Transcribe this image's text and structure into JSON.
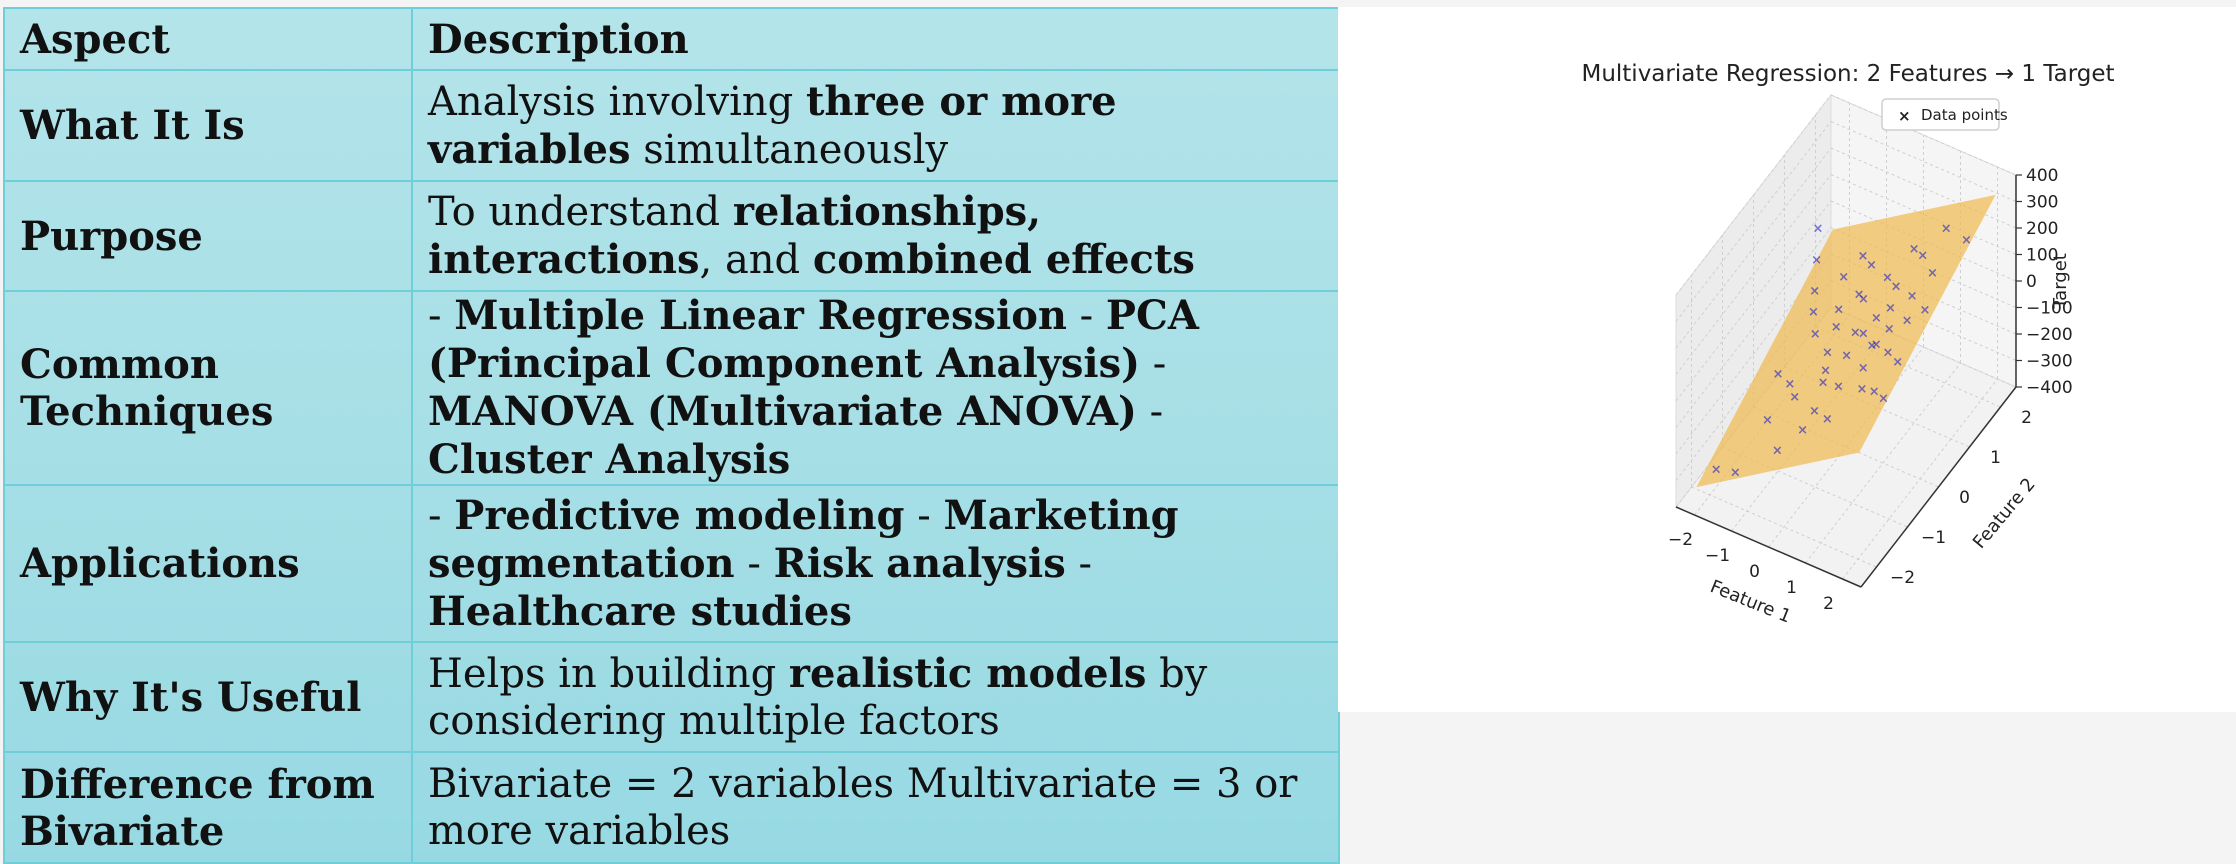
{
  "table": {
    "headers": [
      "Aspect",
      "Description"
    ],
    "rows": [
      {
        "aspect": "What It Is",
        "description": [
          {
            "text": "Analysis involving ",
            "bold": false
          },
          {
            "text": "three or more variables",
            "bold": true
          },
          {
            "text": " simultaneously",
            "bold": false
          }
        ]
      },
      {
        "aspect": "Purpose",
        "description": [
          {
            "text": "To understand ",
            "bold": false
          },
          {
            "text": "relationships, interactions",
            "bold": true
          },
          {
            "text": ", and ",
            "bold": false
          },
          {
            "text": "combined effects",
            "bold": true
          }
        ]
      },
      {
        "aspect": "Common Techniques",
        "description": [
          {
            "text": "- ",
            "bold": false
          },
          {
            "text": "Multiple Linear Regression",
            "bold": true
          },
          {
            "text": " - ",
            "bold": false
          },
          {
            "text": "PCA (Principal Component Analysis)",
            "bold": true
          },
          {
            "text": " - ",
            "bold": false
          },
          {
            "text": "MANOVA (Multivariate ANOVA)",
            "bold": true
          },
          {
            "text": " - ",
            "bold": false
          },
          {
            "text": "Cluster Analysis",
            "bold": true
          }
        ]
      },
      {
        "aspect": "Applications",
        "description": [
          {
            "text": "- ",
            "bold": false
          },
          {
            "text": "Predictive modeling",
            "bold": true
          },
          {
            "text": " - ",
            "bold": false
          },
          {
            "text": "Marketing segmentation",
            "bold": true
          },
          {
            "text": " - ",
            "bold": false
          },
          {
            "text": "Risk analysis",
            "bold": true
          },
          {
            "text": " - ",
            "bold": false
          },
          {
            "text": "Healthcare studies",
            "bold": true
          }
        ]
      },
      {
        "aspect": "Why It's Useful",
        "description": [
          {
            "text": "Helps in building ",
            "bold": false
          },
          {
            "text": "realistic models",
            "bold": true
          },
          {
            "text": " by considering multiple factors",
            "bold": false
          }
        ]
      },
      {
        "aspect": "Difference from Bivariate",
        "description": [
          {
            "text": "Bivariate = 2 variables Multivariate = 3 or more variables",
            "bold": false
          }
        ]
      }
    ]
  },
  "chart_data": {
    "type": "scatter",
    "title": "Multivariate Regression: 2 Features → 1 Target",
    "xlabel": "Feature 1",
    "ylabel": "Feature 2",
    "zlabel": "Target",
    "x_ticks": [
      "−2",
      "−1",
      "0",
      "1",
      "2"
    ],
    "y_ticks": [
      "−2",
      "−1",
      "0",
      "1",
      "2"
    ],
    "z_ticks": [
      "400",
      "300",
      "200",
      "100",
      "0",
      "−100",
      "−200",
      "−300",
      "−400"
    ],
    "xlim": [
      -2.5,
      2.5
    ],
    "ylim": [
      -2.5,
      2.5
    ],
    "zlim": [
      -400,
      400
    ],
    "grid": true,
    "legend_position": "top-right",
    "series": [
      {
        "name": "Data points",
        "marker": "x",
        "color": "#1f1fcc",
        "points": [
          [
            -2.1,
            1.6,
            60
          ],
          [
            -1.8,
            1.2,
            20
          ],
          [
            -1.5,
            -0.4,
            -150
          ],
          [
            -1.3,
            0.5,
            -40
          ],
          [
            -1.2,
            -1.1,
            -200
          ],
          [
            -1.0,
            0.2,
            -60
          ],
          [
            -0.9,
            1.0,
            40
          ],
          [
            -0.8,
            -0.7,
            -150
          ],
          [
            -0.7,
            0.6,
            -10
          ],
          [
            -0.6,
            -1.5,
            -220
          ],
          [
            -0.5,
            0.0,
            -70
          ],
          [
            -0.4,
            1.3,
            70
          ],
          [
            -0.3,
            -0.3,
            -80
          ],
          [
            -0.2,
            0.8,
            30
          ],
          [
            -0.1,
            -0.9,
            -130
          ],
          [
            0.0,
            0.3,
            -10
          ],
          [
            0.1,
            -0.1,
            -30
          ],
          [
            0.2,
            1.1,
            90
          ],
          [
            0.3,
            -0.6,
            -60
          ],
          [
            0.4,
            0.5,
            40
          ],
          [
            0.5,
            -1.2,
            -80
          ],
          [
            0.6,
            0.9,
            110
          ],
          [
            0.7,
            0.0,
            30
          ],
          [
            0.8,
            -0.4,
            10
          ],
          [
            0.9,
            1.4,
            170
          ],
          [
            1.0,
            0.2,
            80
          ],
          [
            1.1,
            -0.8,
            10
          ],
          [
            1.2,
            0.7,
            140
          ],
          [
            1.3,
            -0.2,
            70
          ],
          [
            1.5,
            1.0,
            200
          ],
          [
            1.6,
            -1.0,
            60
          ],
          [
            1.8,
            0.4,
            170
          ],
          [
            2.0,
            1.5,
            280
          ],
          [
            -0.6,
            0.4,
            -40
          ],
          [
            -0.2,
            -0.5,
            -90
          ],
          [
            0.3,
            0.2,
            20
          ],
          [
            0.7,
            0.6,
            80
          ],
          [
            -1.1,
            -0.5,
            -150
          ],
          [
            1.4,
            0.3,
            120
          ],
          [
            -0.4,
            0.9,
            20
          ],
          [
            0.0,
            -1.4,
            -120
          ],
          [
            0.9,
            -0.1,
            60
          ],
          [
            -1.6,
            0.9,
            -40
          ],
          [
            1.9,
            -0.6,
            130
          ],
          [
            -0.8,
            1.5,
            50
          ],
          [
            0.5,
            1.6,
            140
          ],
          [
            -2.0,
            -1.8,
            -330
          ],
          [
            -1.4,
            -1.9,
            -290
          ],
          [
            2.1,
            -1.3,
            110
          ],
          [
            1.2,
            1.8,
            230
          ]
        ]
      }
    ],
    "plane": {
      "color": "#f0b94d",
      "intercept": 0,
      "coef_feature1": 90,
      "coef_feature2": 70
    }
  }
}
